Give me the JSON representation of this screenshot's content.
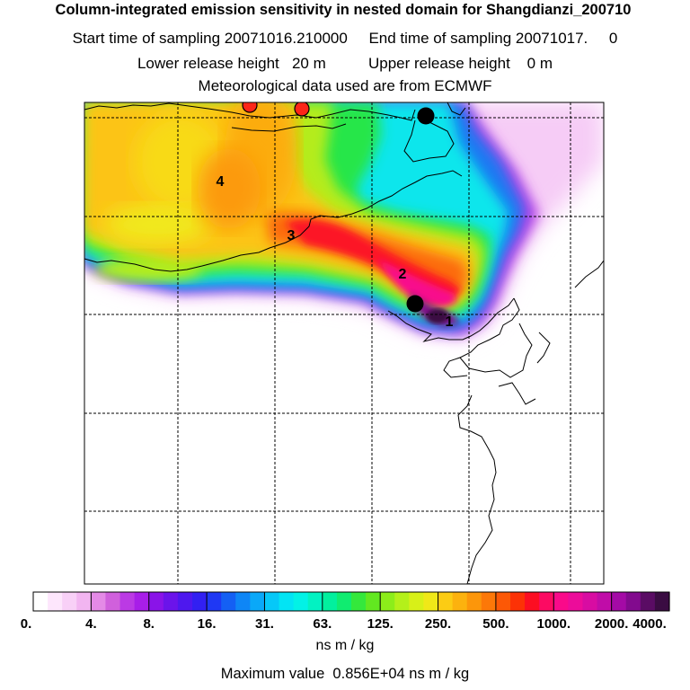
{
  "title": {
    "line1": "Column-integrated emission sensitivity in nested domain for Shangdianzi_200710",
    "line2": "Start time of sampling 20071016.210000     End time of sampling 20071017.     0",
    "line3": "Lower release height   20 m          Upper release height    0 m",
    "line4": "Meteorological data used are from ECMWF"
  },
  "map": {
    "labels": [
      "1",
      "2",
      "3",
      "4"
    ],
    "markers": [
      "receptor-station",
      "ocean-site",
      "release-point-a",
      "release-point-b"
    ]
  },
  "colorbar": {
    "ticks": [
      "0.",
      "4.",
      "8.",
      "16.",
      "31.",
      "63.",
      "125.",
      "250.",
      "500.",
      "1000.",
      "2000.",
      "4000."
    ],
    "colors": [
      "#ffffff",
      "#fde6fc",
      "#f8d0f7",
      "#f2b5f1",
      "#e48ae6",
      "#d060dc",
      "#bb3ae4",
      "#a81ee8",
      "#8a14e8",
      "#6b14ea",
      "#4e18ee",
      "#3220f2",
      "#1f38f4",
      "#1460f4",
      "#0e86f6",
      "#0aa8f8",
      "#06c8f8",
      "#02e4f4",
      "#02f2e6",
      "#02f2c2",
      "#02f09e",
      "#10ec70",
      "#34e83c",
      "#62e820",
      "#8ced1a",
      "#b4f01a",
      "#d8f018",
      "#f0e818",
      "#fccc14",
      "#fcb20e",
      "#fc960a",
      "#fc7808",
      "#fc5806",
      "#fc3206",
      "#fc0e22",
      "#fc0a62",
      "#fa0a8a",
      "#ec0c9a",
      "#d80ca2",
      "#c00ca8",
      "#a40aa6",
      "#820a8e",
      "#5a0c64",
      "#3a0c42"
    ],
    "units": "ns m / kg"
  },
  "footer": {
    "max_value": "Maximum value  0.856E+04 ns m / kg"
  }
}
